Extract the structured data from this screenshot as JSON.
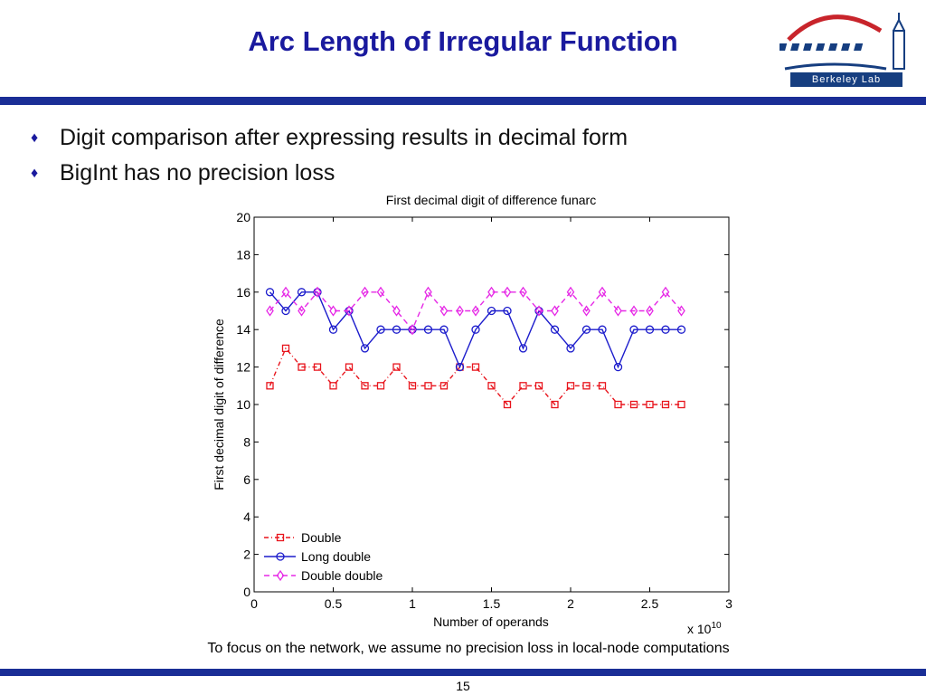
{
  "slide": {
    "title": "Arc Length of Irregular Function",
    "bullets": [
      "Digit comparison after expressing results in decimal form",
      "BigInt has no precision loss"
    ],
    "bullet_marker": "♦",
    "caption": "To focus on the network, we assume no precision loss in local-node computations",
    "page_number": "15",
    "logo_text": "Berkeley Lab"
  },
  "colors": {
    "title": "#1a1a9e",
    "rule": "#1a2e96",
    "double": "#e8141c",
    "long_double": "#1c1ccc",
    "double_double": "#e629e6"
  },
  "chart_data": {
    "type": "line",
    "title": "First decimal digit of difference funarc",
    "xlabel": "Number of operands",
    "ylabel": "First decimal digit of difference",
    "x_multiplier_label": "x 10",
    "x_multiplier_exponent": "10",
    "xlim": [
      0,
      3
    ],
    "ylim": [
      0,
      20
    ],
    "xticks": [
      0,
      0.5,
      1,
      1.5,
      2,
      2.5,
      3
    ],
    "xtick_labels": [
      "0",
      "0.5",
      "1",
      "1.5",
      "2",
      "2.5",
      "3"
    ],
    "yticks": [
      0,
      2,
      4,
      6,
      8,
      10,
      12,
      14,
      16,
      18,
      20
    ],
    "ytick_labels": [
      "0",
      "2",
      "4",
      "6",
      "8",
      "10",
      "12",
      "14",
      "16",
      "18",
      "20"
    ],
    "grid": false,
    "legend_position": "bottom-left",
    "x": [
      0.1,
      0.2,
      0.3,
      0.4,
      0.5,
      0.6,
      0.7,
      0.8,
      0.9,
      1.0,
      1.1,
      1.2,
      1.3,
      1.4,
      1.5,
      1.6,
      1.7,
      1.8,
      1.9,
      2.0,
      2.1,
      2.2,
      2.3,
      2.4,
      2.5,
      2.6,
      2.7
    ],
    "series": [
      {
        "name": "Double",
        "marker": "square",
        "line": "dash-dot",
        "values": [
          11,
          13,
          12,
          12,
          11,
          12,
          11,
          11,
          12,
          11,
          11,
          11,
          12,
          12,
          11,
          10,
          11,
          11,
          10,
          11,
          11,
          11,
          10,
          10,
          10,
          10,
          10
        ]
      },
      {
        "name": "Long double",
        "marker": "circle",
        "line": "solid",
        "values": [
          16,
          15,
          16,
          16,
          14,
          15,
          13,
          14,
          14,
          14,
          14,
          14,
          12,
          14,
          15,
          15,
          13,
          15,
          14,
          13,
          14,
          14,
          12,
          14,
          14,
          14,
          14
        ]
      },
      {
        "name": "Double double",
        "marker": "diamond",
        "line": "dashed",
        "values": [
          15,
          16,
          15,
          16,
          15,
          15,
          16,
          16,
          15,
          14,
          16,
          15,
          15,
          15,
          16,
          16,
          16,
          15,
          15,
          16,
          15,
          16,
          15,
          15,
          15,
          16,
          15
        ]
      }
    ]
  }
}
